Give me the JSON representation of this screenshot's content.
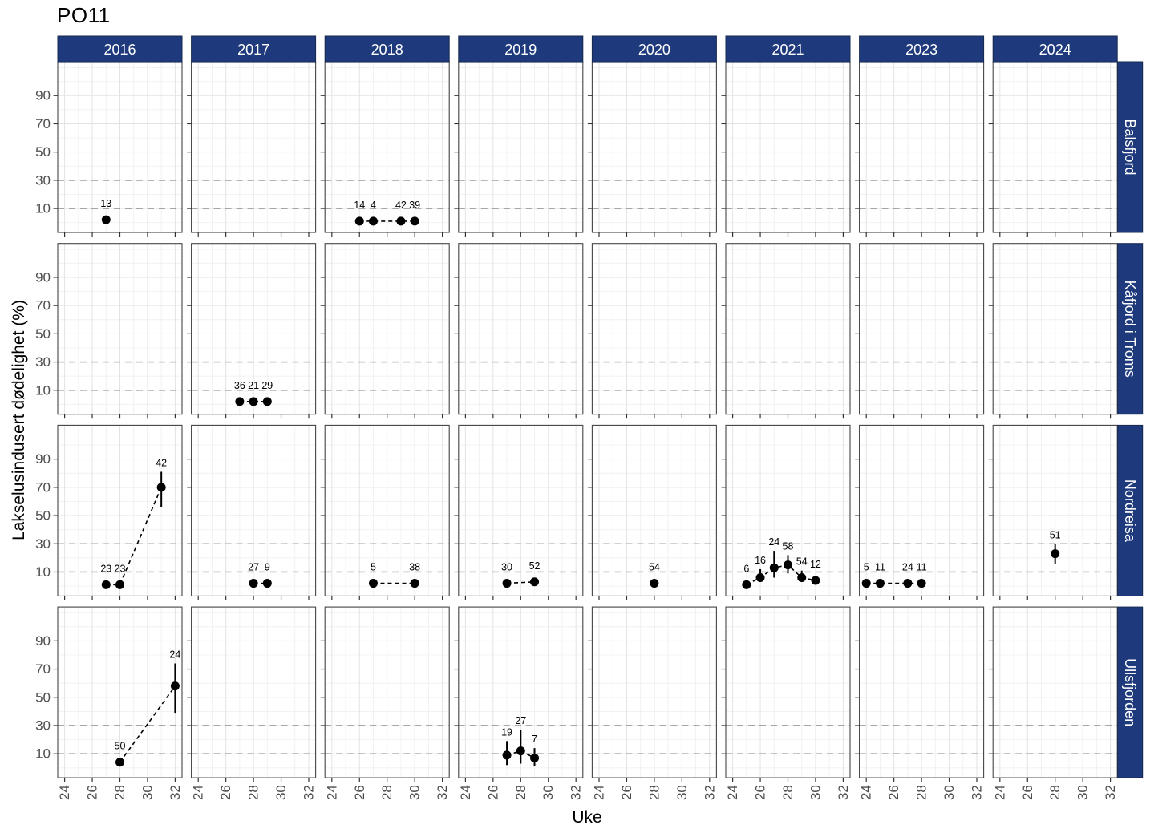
{
  "title": "PO11",
  "x_axis": {
    "label": "Uke"
  },
  "y_axis": {
    "label": "Lakselusindusert dødelighet (%)"
  },
  "colors": {
    "strip_bg": "#1e3a7d",
    "strip_border": "#15294f",
    "strip_text": "#ffffff",
    "point": "#000000",
    "error_bar": "#000000",
    "connector": "#000000",
    "grid_major": "#e3e3e3",
    "grid_minor": "#f0f0f0",
    "ref_line": "#8a8a8a",
    "panel_border": "#444444",
    "panel_bg": "#ffffff",
    "tick_mark": "#333333",
    "tick_label": "#4d4d4d",
    "point_label": "#000000"
  },
  "chart_data": {
    "type": "scatter",
    "title": "PO11",
    "xlabel": "Uke",
    "ylabel": "Lakselusindusert dødelighet (%)",
    "facet_columns": [
      "2016",
      "2017",
      "2018",
      "2019",
      "2020",
      "2021",
      "2023",
      "2024"
    ],
    "facet_rows": [
      "Balsfjord",
      "Kåfjord i Troms",
      "Nordreisa",
      "Ullsfjorden"
    ],
    "x_ticks": [
      24,
      26,
      28,
      30,
      32
    ],
    "x_minor_grid": [
      25,
      27,
      29,
      31
    ],
    "y_ticks": [
      10,
      30,
      50,
      70,
      90
    ],
    "y_major_grid": [
      10,
      30,
      50,
      70,
      90,
      110
    ],
    "y_minor_grid": [
      0,
      20,
      40,
      60,
      80,
      100
    ],
    "ref_lines": [
      10,
      30
    ],
    "xlim": [
      23.5,
      32.5
    ],
    "ylim": [
      -7,
      114
    ],
    "grid": true,
    "legend": "none",
    "panels": [
      {
        "row": "Balsfjord",
        "col": "2016",
        "points": [
          {
            "week": 27,
            "value": 2,
            "label": "13"
          }
        ]
      },
      {
        "row": "Balsfjord",
        "col": "2018",
        "points": [
          {
            "week": 26,
            "value": 1,
            "label": "14"
          },
          {
            "week": 27,
            "value": 1,
            "label": "4"
          },
          {
            "week": 29,
            "value": 1,
            "label": "42"
          },
          {
            "week": 30,
            "value": 1,
            "label": "39"
          }
        ]
      },
      {
        "row": "Kåfjord i Troms",
        "col": "2017",
        "points": [
          {
            "week": 27,
            "value": 2,
            "label": "36"
          },
          {
            "week": 28,
            "value": 2,
            "label": "21"
          },
          {
            "week": 29,
            "value": 2,
            "label": "29"
          }
        ]
      },
      {
        "row": "Nordreisa",
        "col": "2016",
        "points": [
          {
            "week": 27,
            "value": 1,
            "label": "23"
          },
          {
            "week": 28,
            "value": 1,
            "label": "23"
          },
          {
            "week": 31,
            "value": 70,
            "label": "42",
            "lo": 56,
            "hi": 81
          }
        ]
      },
      {
        "row": "Nordreisa",
        "col": "2017",
        "points": [
          {
            "week": 28,
            "value": 2,
            "label": "27"
          },
          {
            "week": 29,
            "value": 2,
            "label": "9"
          }
        ]
      },
      {
        "row": "Nordreisa",
        "col": "2018",
        "points": [
          {
            "week": 27,
            "value": 2,
            "label": "5"
          },
          {
            "week": 30,
            "value": 2,
            "label": "38"
          }
        ]
      },
      {
        "row": "Nordreisa",
        "col": "2019",
        "points": [
          {
            "week": 27,
            "value": 2,
            "label": "30"
          },
          {
            "week": 29,
            "value": 3,
            "label": "52"
          }
        ]
      },
      {
        "row": "Nordreisa",
        "col": "2020",
        "points": [
          {
            "week": 28,
            "value": 2,
            "label": "54"
          }
        ]
      },
      {
        "row": "Nordreisa",
        "col": "2021",
        "points": [
          {
            "week": 25,
            "value": 1,
            "label": "6"
          },
          {
            "week": 26,
            "value": 6,
            "label": "16",
            "lo": 3,
            "hi": 12
          },
          {
            "week": 27,
            "value": 13,
            "label": "24",
            "lo": 6,
            "hi": 25
          },
          {
            "week": 28,
            "value": 15,
            "label": "58",
            "lo": 9,
            "hi": 22
          },
          {
            "week": 29,
            "value": 6,
            "label": "54",
            "lo": 3,
            "hi": 11
          },
          {
            "week": 30,
            "value": 4,
            "label": "12"
          }
        ]
      },
      {
        "row": "Nordreisa",
        "col": "2023",
        "points": [
          {
            "week": 24,
            "value": 2,
            "label": "5"
          },
          {
            "week": 25,
            "value": 2,
            "label": "11"
          },
          {
            "week": 27,
            "value": 2,
            "label": "24"
          },
          {
            "week": 28,
            "value": 2,
            "label": "11"
          }
        ]
      },
      {
        "row": "Nordreisa",
        "col": "2024",
        "points": [
          {
            "week": 28,
            "value": 23,
            "label": "51",
            "lo": 16,
            "hi": 30
          }
        ]
      },
      {
        "row": "Ullsfjorden",
        "col": "2016",
        "points": [
          {
            "week": 28,
            "value": 4,
            "label": "50"
          },
          {
            "week": 32,
            "value": 58,
            "label": "24",
            "lo": 39,
            "hi": 74
          }
        ]
      },
      {
        "row": "Ullsfjorden",
        "col": "2019",
        "points": [
          {
            "week": 27,
            "value": 9,
            "label": "19",
            "lo": 2,
            "hi": 19
          },
          {
            "week": 28,
            "value": 12,
            "label": "27",
            "lo": 3,
            "hi": 27
          },
          {
            "week": 29,
            "value": 7,
            "label": "7",
            "lo": 1,
            "hi": 14
          }
        ]
      }
    ]
  }
}
